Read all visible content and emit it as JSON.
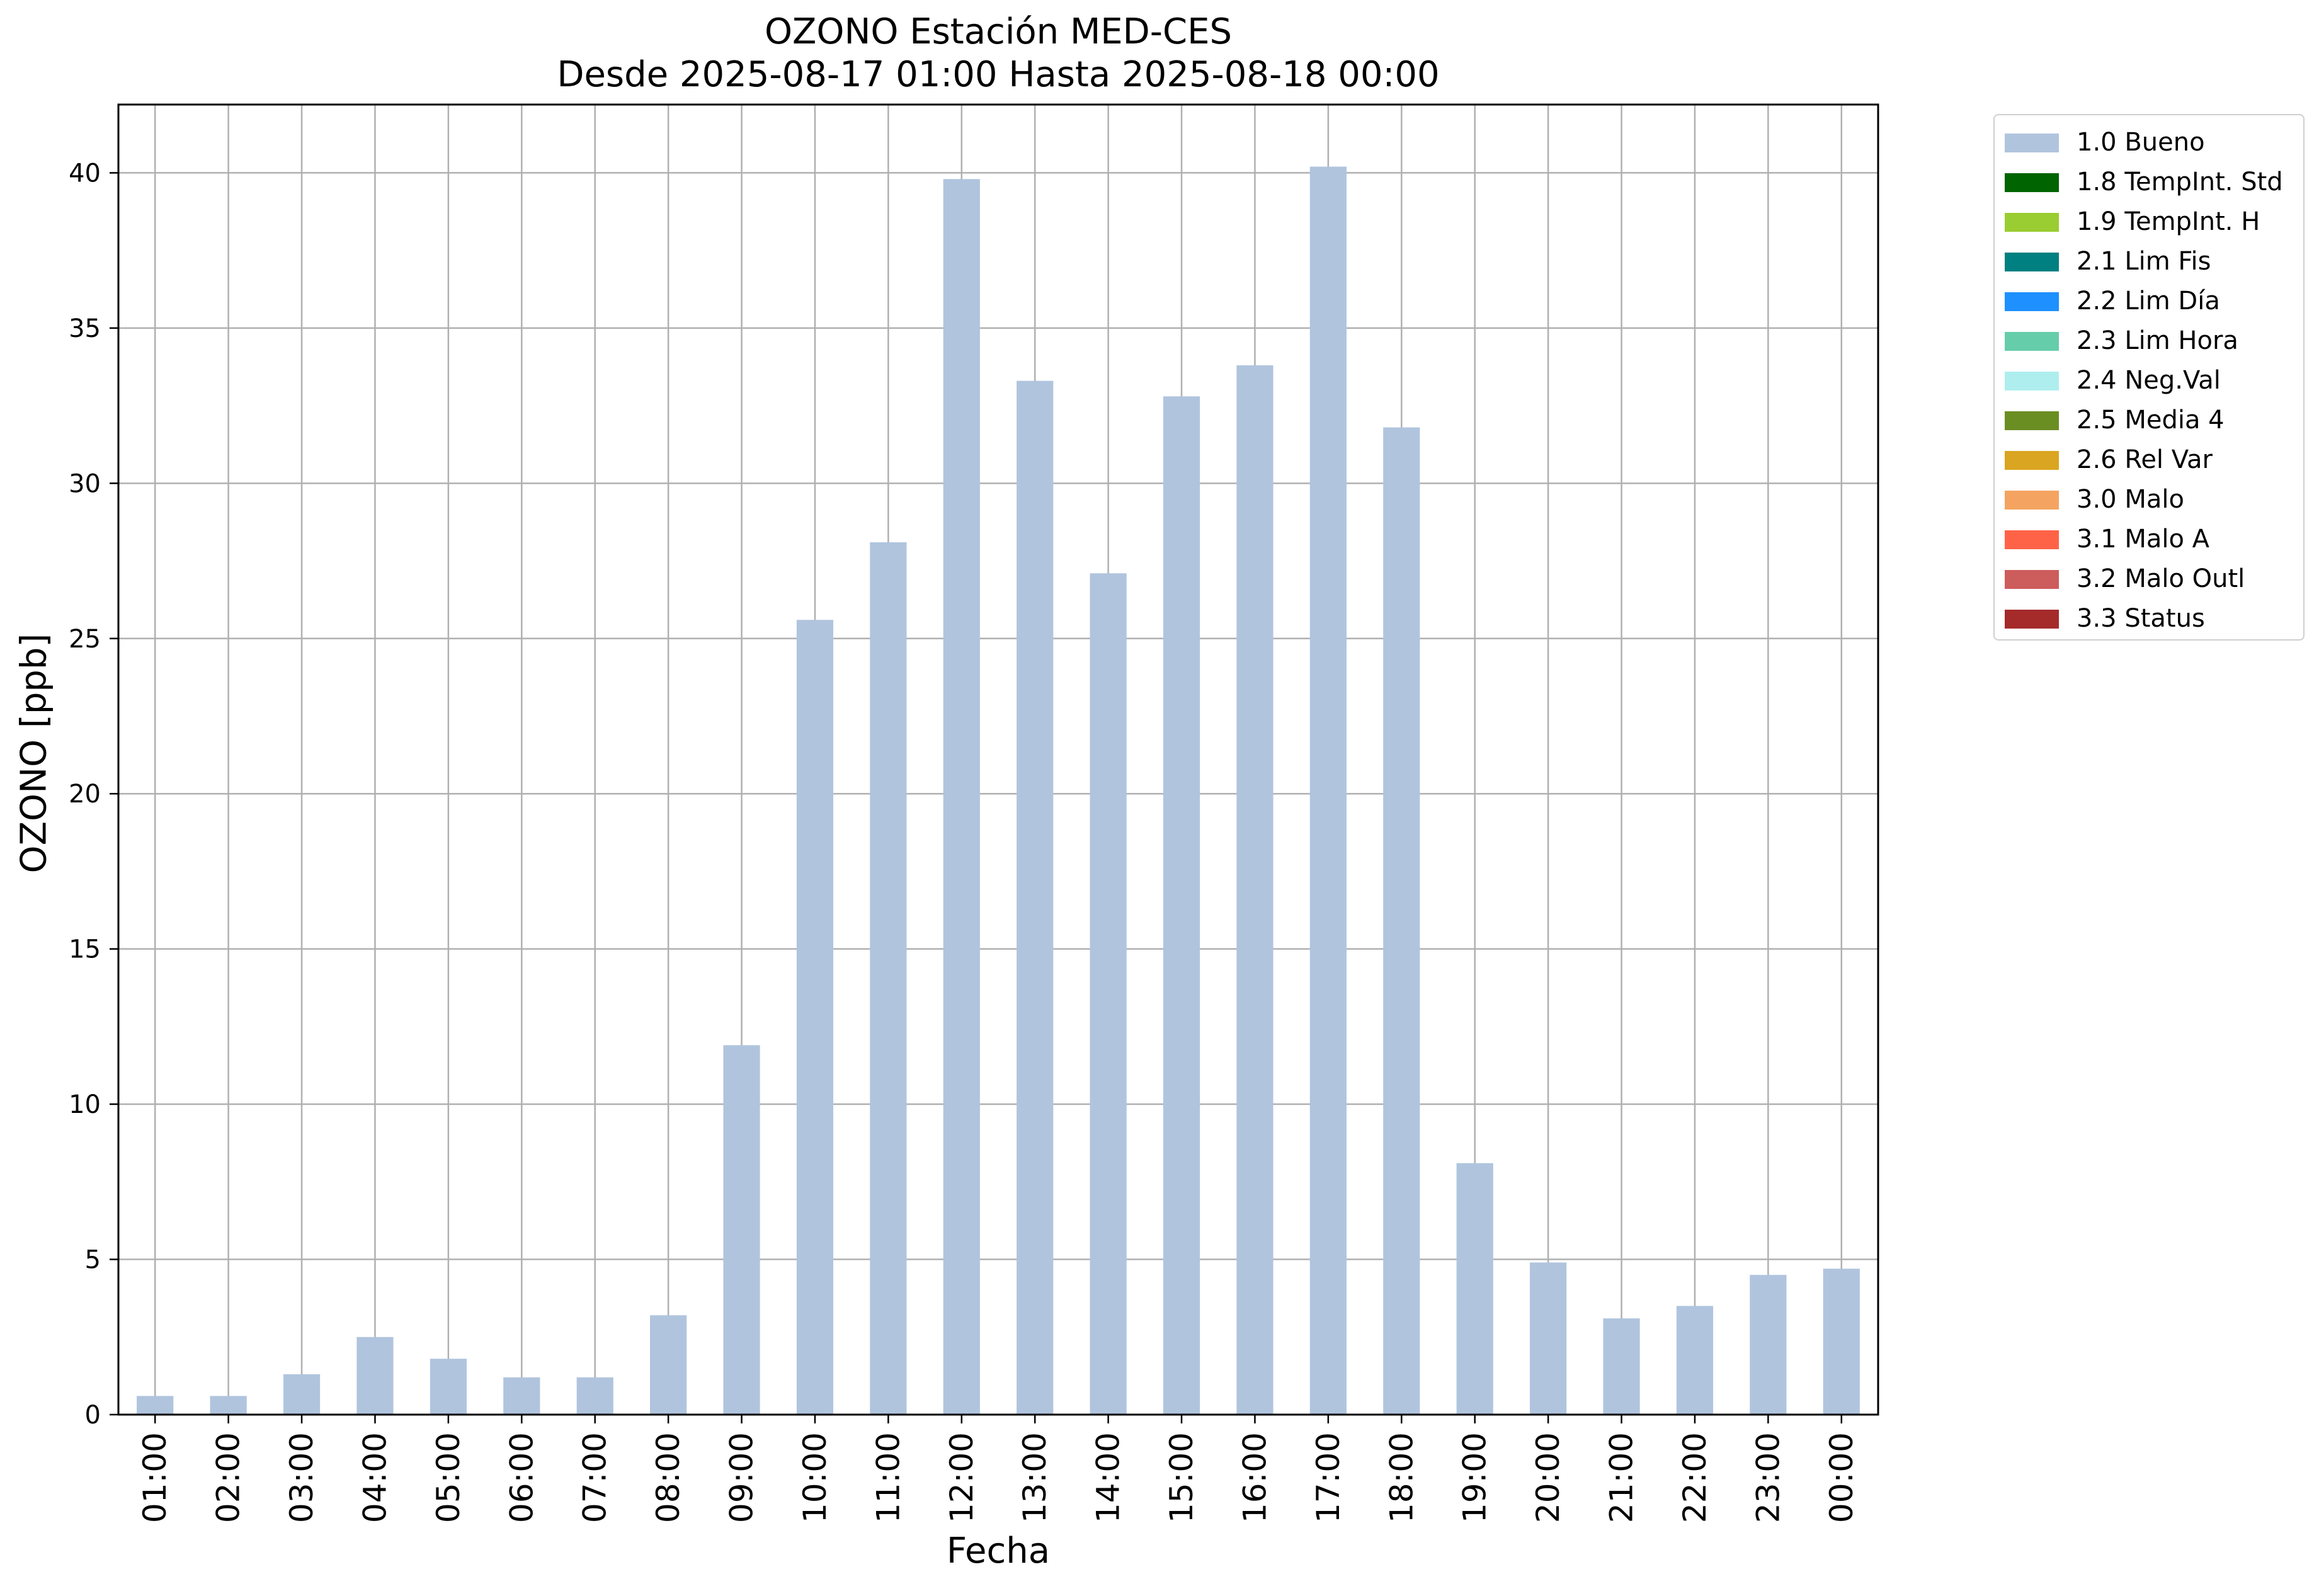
{
  "chart_data": {
    "type": "bar",
    "title": "OZONO Estación MED-CES",
    "subtitle": "Desde 2025-08-17 01:00 Hasta 2025-08-18 00:00",
    "xlabel": "Fecha",
    "ylabel": "OZONO [ppb]",
    "categories": [
      "01:00",
      "02:00",
      "03:00",
      "04:00",
      "05:00",
      "06:00",
      "07:00",
      "08:00",
      "09:00",
      "10:00",
      "11:00",
      "12:00",
      "13:00",
      "14:00",
      "15:00",
      "16:00",
      "17:00",
      "18:00",
      "19:00",
      "20:00",
      "21:00",
      "22:00",
      "23:00",
      "00:00"
    ],
    "series": [
      {
        "name": "1.0 Bueno",
        "color": "#b0c4de",
        "values": [
          0.6,
          0.6,
          1.3,
          2.5,
          1.8,
          1.2,
          1.2,
          3.2,
          11.9,
          25.6,
          28.1,
          39.8,
          33.3,
          27.1,
          32.8,
          33.8,
          40.2,
          31.8,
          8.1,
          4.9,
          3.1,
          3.5,
          4.5,
          4.7
        ]
      }
    ],
    "ylim": [
      0,
      42.2
    ],
    "yticks": [
      0,
      5,
      10,
      15,
      20,
      25,
      30,
      35,
      40
    ],
    "grid": true,
    "legend_position": "outside-right",
    "legend": [
      {
        "label": "1.0 Bueno",
        "color": "#b0c4de"
      },
      {
        "label": "1.8 TempInt. Std",
        "color": "#006400"
      },
      {
        "label": "1.9 TempInt. H",
        "color": "#9acd32"
      },
      {
        "label": "2.1 Lim Fis",
        "color": "#008080"
      },
      {
        "label": "2.2 Lim Día",
        "color": "#1e90ff"
      },
      {
        "label": "2.3 Lim Hora",
        "color": "#66cdaa"
      },
      {
        "label": "2.4 Neg.Val",
        "color": "#afeeee"
      },
      {
        "label": "2.5 Media 4",
        "color": "#6b8e23"
      },
      {
        "label": "2.6 Rel Var",
        "color": "#daa520"
      },
      {
        "label": "3.0 Malo",
        "color": "#f4a460"
      },
      {
        "label": "3.1 Malo A",
        "color": "#ff6347"
      },
      {
        "label": "3.2 Malo Outl",
        "color": "#cd5c5c"
      },
      {
        "label": "3.3 Status",
        "color": "#a52a2a"
      }
    ]
  }
}
